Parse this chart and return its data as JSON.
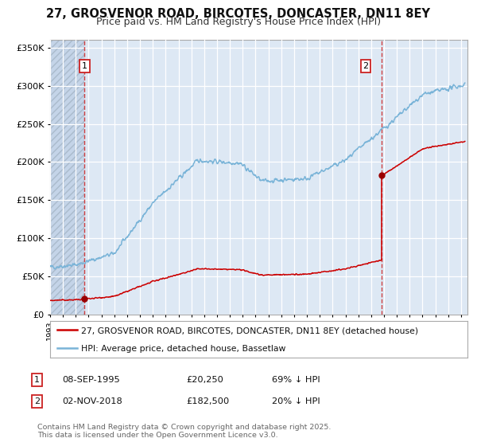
{
  "title_line1": "27, GROSVENOR ROAD, BIRCOTES, DONCASTER, DN11 8EY",
  "title_line2": "Price paid vs. HM Land Registry's House Price Index (HPI)",
  "legend_line1": "27, GROSVENOR ROAD, BIRCOTES, DONCASTER, DN11 8EY (detached house)",
  "legend_line2": "HPI: Average price, detached house, Bassetlaw",
  "transaction1_date": "08-SEP-1995",
  "transaction1_price": "£20,250",
  "transaction1_hpi": "69% ↓ HPI",
  "transaction2_date": "02-NOV-2018",
  "transaction2_price": "£182,500",
  "transaction2_hpi": "20% ↓ HPI",
  "footer": "Contains HM Land Registry data © Crown copyright and database right 2025.\nThis data is licensed under the Open Government Licence v3.0.",
  "hpi_color": "#7ab4d8",
  "price_color": "#cc0000",
  "marker_color": "#990000",
  "vline_color": "#cc2222",
  "bg_color": "#dde8f4",
  "grid_color": "#ffffff",
  "ylim": [
    0,
    360000
  ],
  "yticks": [
    0,
    50000,
    100000,
    150000,
    200000,
    250000,
    300000,
    350000
  ],
  "ytick_labels": [
    "£0",
    "£50K",
    "£100K",
    "£150K",
    "£200K",
    "£250K",
    "£300K",
    "£350K"
  ],
  "transaction1_x": 1995.69,
  "transaction1_y": 20250,
  "transaction2_x": 2018.84,
  "transaction2_y": 182500,
  "transaction2_prev_y": 68000,
  "xmin": 1993.0,
  "xmax": 2025.5
}
